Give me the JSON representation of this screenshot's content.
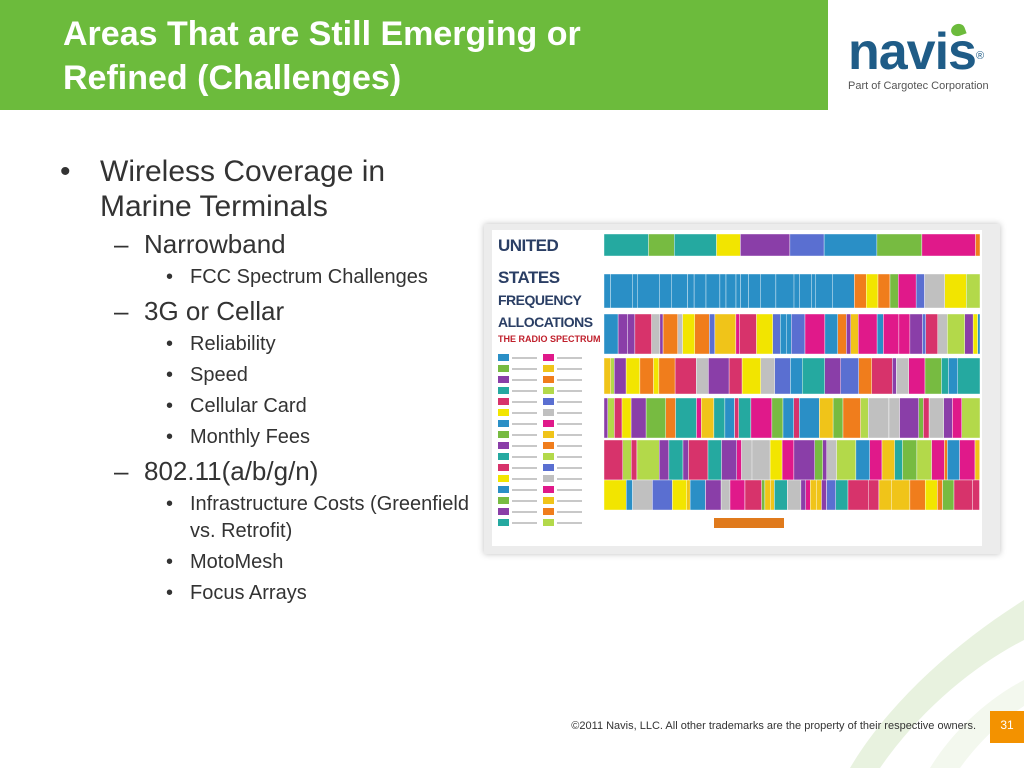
{
  "slide": {
    "title_line1": "Areas That are Still Emerging  or",
    "title_line2": "Refined (Challenges)"
  },
  "brand": {
    "logo_text": "navis",
    "registered_mark": "®",
    "tagline": "Part of Cargotec Corporation",
    "green": "#6cbb3c",
    "blue": "#1f5c87",
    "orange": "#f39200"
  },
  "bullets": {
    "item1": "Wireless Coverage in Marine Terminals",
    "narrowband": "Narrowband",
    "fcc": "FCC Spectrum Challenges",
    "cellar": "3G or Cellar",
    "reliability": "Reliability",
    "speed": "Speed",
    "cellular_card": "Cellular Card",
    "monthly_fees": "Monthly Fees",
    "wifi": "802.11(a/b/g/n)",
    "infra": "Infrastructure Costs (Greenfield vs. Retrofit)",
    "motomesh": "MotoMesh",
    "focus": "Focus Arrays"
  },
  "chart_image": {
    "line1": "UNITED",
    "line2": "STATES",
    "line3": "FREQUENCY",
    "line4": "ALLOCATIONS",
    "subtitle": "THE RADIO SPECTRUM"
  },
  "footer": {
    "copyright": "©2011 Navis, LLC. All other trademarks are the property of their respective owners.",
    "page_number": "31"
  }
}
